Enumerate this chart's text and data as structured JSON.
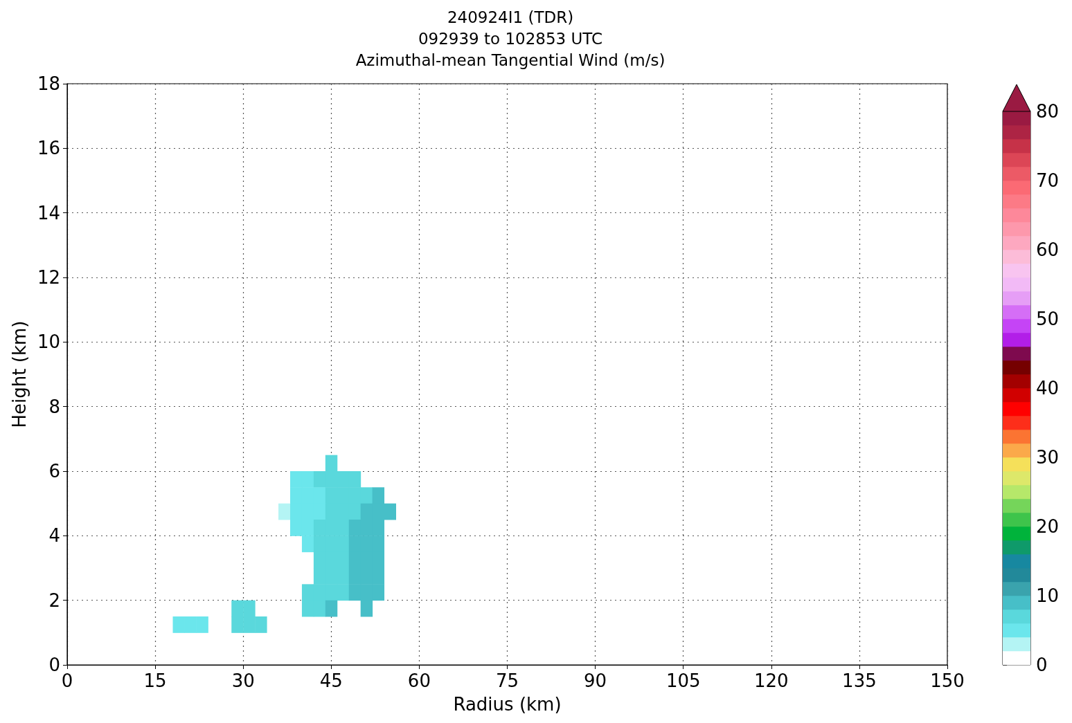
{
  "chart_data": {
    "type": "heatmap",
    "title": "240924I1 (TDR)",
    "subtitle": "092939 to 102853 UTC\nAzimuthal-mean Tangential Wind (m/s)",
    "xlabel": "Radius (km)",
    "ylabel": "Height (km)",
    "xlim": [
      0,
      150
    ],
    "xticks": [
      0,
      15,
      30,
      45,
      60,
      75,
      90,
      105,
      120,
      135,
      150
    ],
    "ylim": [
      0,
      18
    ],
    "yticks": [
      0,
      2,
      4,
      6,
      8,
      10,
      12,
      14,
      16,
      18
    ],
    "grid": true,
    "x": [
      19,
      21,
      23,
      25,
      27,
      29,
      31,
      33,
      35,
      37,
      39,
      41,
      43,
      45,
      47,
      49,
      51,
      53,
      55
    ],
    "y": [
      6.25,
      5.75,
      5.25,
      4.75,
      4.25,
      3.75,
      3.25,
      2.75,
      2.25,
      1.75,
      1.25
    ],
    "cells": [
      [
        null,
        null,
        null,
        null,
        null,
        null,
        null,
        null,
        null,
        null,
        null,
        null,
        null,
        7,
        null,
        null,
        null,
        null,
        null
      ],
      [
        null,
        null,
        null,
        null,
        null,
        null,
        null,
        null,
        null,
        null,
        5,
        5,
        6,
        7,
        7,
        7,
        null,
        null,
        null
      ],
      [
        null,
        null,
        null,
        null,
        null,
        null,
        null,
        null,
        null,
        null,
        5,
        5,
        5,
        7,
        7,
        7,
        7,
        9,
        null
      ],
      [
        null,
        null,
        null,
        null,
        null,
        null,
        null,
        null,
        null,
        3,
        5,
        5,
        5,
        7,
        7,
        7,
        9,
        9,
        9
      ],
      [
        null,
        null,
        null,
        null,
        null,
        null,
        null,
        null,
        null,
        null,
        5,
        5,
        7,
        7,
        7,
        9,
        9,
        9,
        null
      ],
      [
        null,
        null,
        null,
        null,
        null,
        null,
        null,
        null,
        null,
        null,
        null,
        5,
        7,
        7,
        7,
        9,
        9,
        9,
        null
      ],
      [
        null,
        null,
        null,
        null,
        null,
        null,
        null,
        null,
        null,
        null,
        null,
        null,
        7,
        7,
        7,
        9,
        9,
        9,
        null
      ],
      [
        null,
        null,
        null,
        null,
        null,
        null,
        null,
        null,
        null,
        null,
        null,
        null,
        7,
        7,
        7,
        9,
        9,
        9,
        null
      ],
      [
        null,
        null,
        null,
        null,
        null,
        null,
        null,
        null,
        null,
        null,
        null,
        7,
        7,
        7,
        7,
        9,
        9,
        9,
        null
      ],
      [
        null,
        null,
        null,
        null,
        null,
        7,
        7,
        null,
        null,
        null,
        null,
        7,
        7,
        9,
        null,
        null,
        9,
        null,
        null
      ],
      [
        5,
        5,
        5,
        null,
        null,
        7,
        7,
        7,
        null,
        null,
        null,
        null,
        null,
        null,
        null,
        null,
        null,
        null,
        null
      ]
    ],
    "clim": [
      0,
      80
    ],
    "cticks": [
      0,
      10,
      20,
      30,
      40,
      50,
      60,
      70,
      80
    ],
    "colors": [
      "#ffffff",
      "#b4f4f4",
      "#6be6ec",
      "#5ad8dc",
      "#47bfc8",
      "#3aa3ad",
      "#22899a",
      "#1788a0",
      "#0f9a6a",
      "#00b33b",
      "#3ec44b",
      "#75d55a",
      "#b6e86a",
      "#dde86a",
      "#f5e05a",
      "#fba94a",
      "#fb7432",
      "#fd2e1a",
      "#ff0000",
      "#d10000",
      "#a30000",
      "#750000",
      "#7e0a4e",
      "#b21ee8",
      "#c544f6",
      "#d56ef6",
      "#e69ef6",
      "#f2baf6",
      "#f8c4f0",
      "#fcbcd8",
      "#fda8c0",
      "#fd98ac",
      "#fd889a",
      "#fc7a86",
      "#fb6a74",
      "#ec5a66",
      "#dc4656",
      "#c63248",
      "#ad2444",
      "#9a1a42"
    ]
  }
}
